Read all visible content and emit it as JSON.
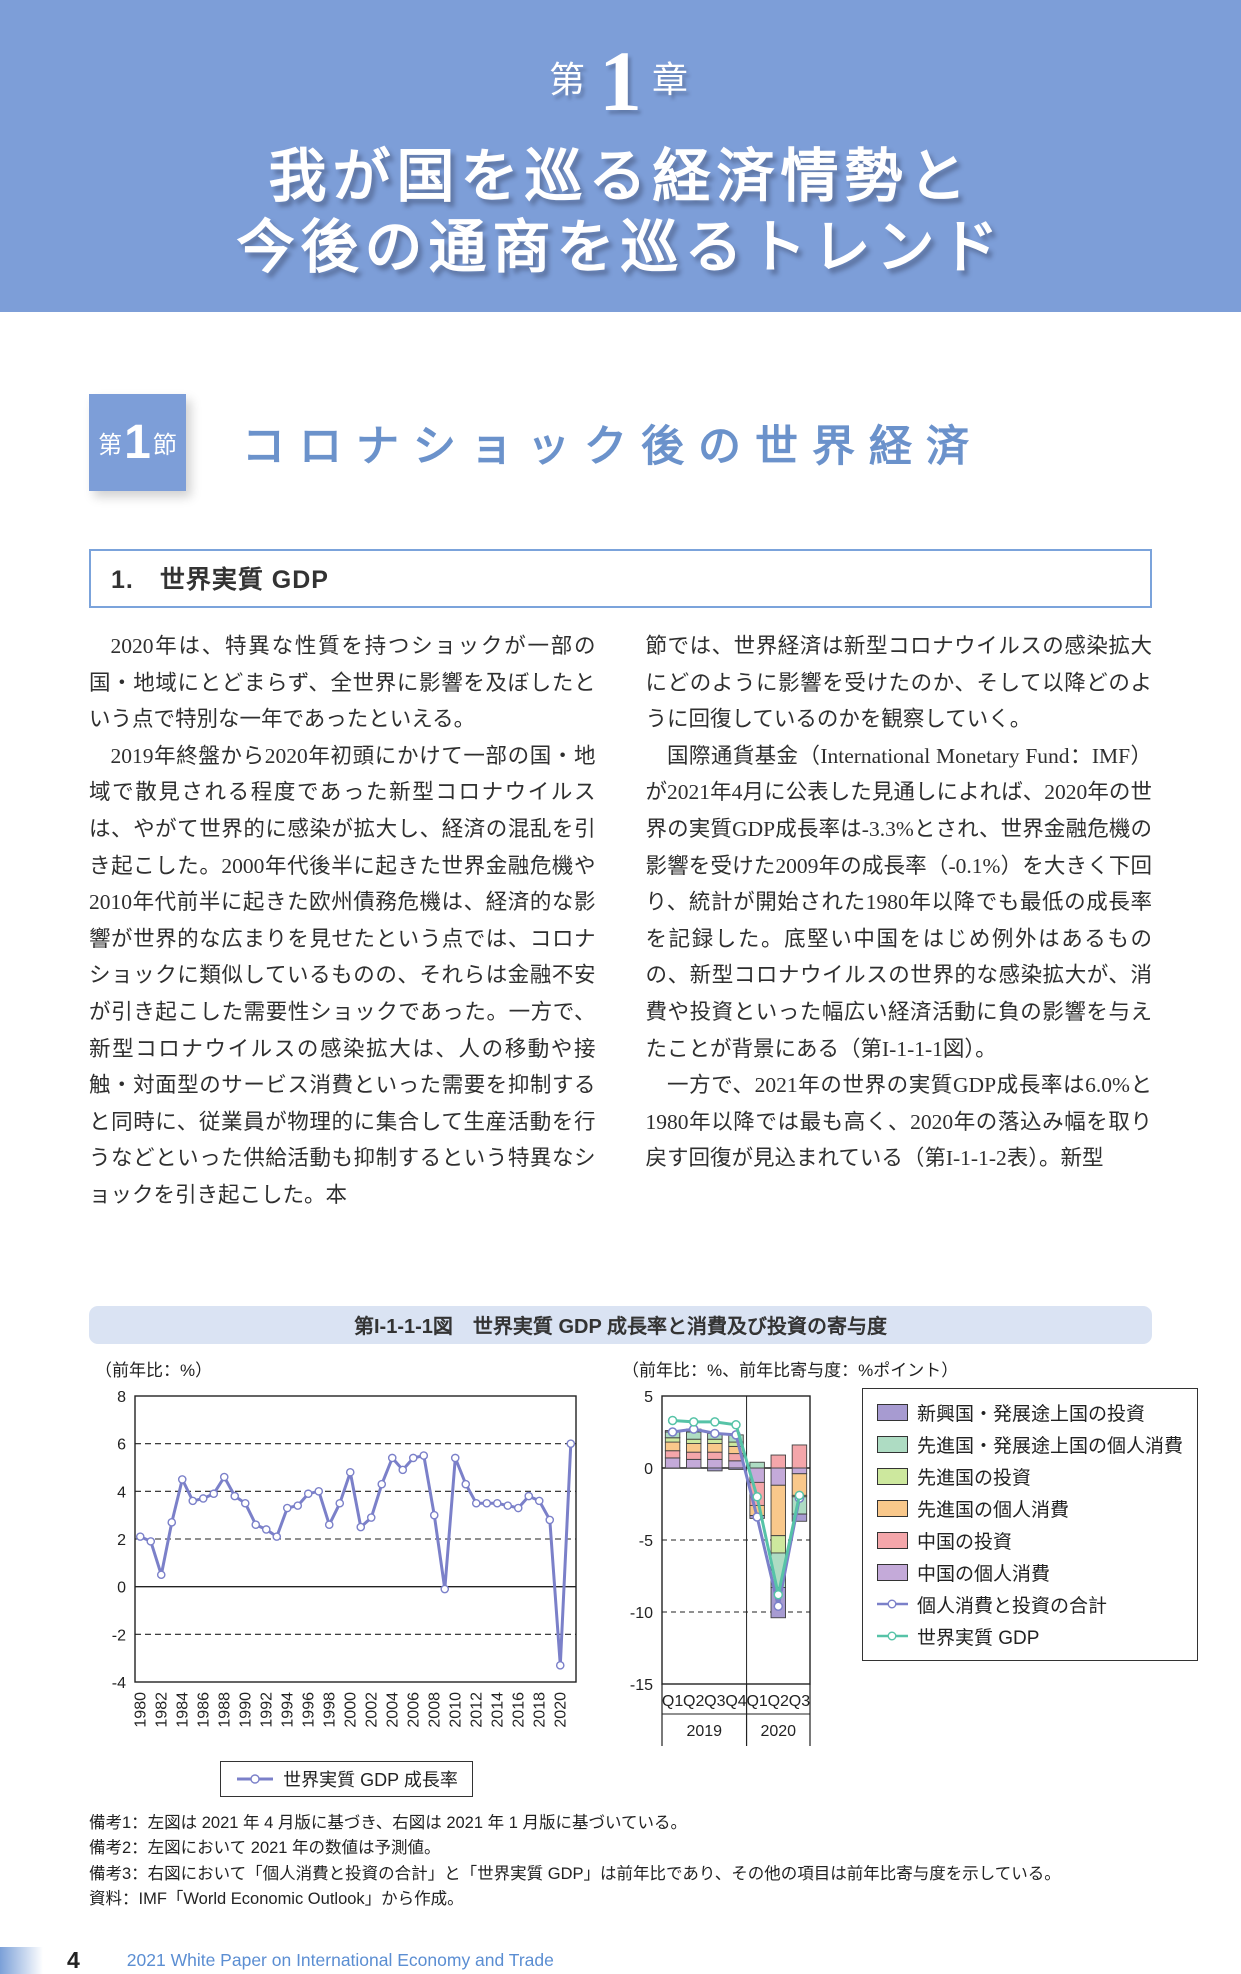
{
  "page": {
    "header": {
      "chapter_prefix": "第",
      "chapter_number": "1",
      "chapter_suffix": "章",
      "title_line1": "我が国を巡る経済情勢と",
      "title_line2": "今後の通商を巡るトレンド"
    },
    "section": {
      "badge_prefix": "第",
      "badge_number": "1",
      "badge_suffix": "節",
      "title": "コロナショック後の世界経済"
    },
    "heading": "1.　世界実質 GDP",
    "columns": {
      "left": [
        "2020年は、特異な性質を持つショックが一部の国・地域にとどまらず、全世界に影響を及ぼしたという点で特別な一年であったといえる。",
        "2019年終盤から2020年初頭にかけて一部の国・地域で散見される程度であった新型コロナウイルスは、やがて世界的に感染が拡大し、経済の混乱を引き起こした。2000年代後半に起きた世界金融危機や2010年代前半に起きた欧州債務危機は、経済的な影響が世界的な広まりを見せたという点では、コロナショックに類似しているものの、それらは金融不安が引き起こした需要性ショックであった。一方で、新型コロナウイルスの感染拡大は、人の移動や接触・対面型のサービス消費といった需要を抑制すると同時に、従業員が物理的に集合して生産活動を行うなどといった供給活動も抑制するという特異なショックを引き起こした。本"
      ],
      "right": [
        "節では、世界経済は新型コロナウイルスの感染拡大にどのように影響を受けたのか、そして以降どのように回復しているのかを観察していく。",
        "国際通貨基金（International Monetary Fund：IMF）が2021年4月に公表した見通しによれば、2020年の世界の実質GDP成長率は-3.3%とされ、世界金融危機の影響を受けた2009年の成長率（-0.1%）を大きく下回り、統計が開始された1980年以降でも最低の成長率を記録した。底堅い中国をはじめ例外はあるものの、新型コロナウイルスの世界的な感染拡大が、消費や投資といった幅広い経済活動に負の影響を与えたことが背景にある（第I-1-1-1図）。",
        "一方で、2021年の世界の実質GDP成長率は6.0%と1980年以降では最も高く、2020年の落込み幅を取り戻す回復が見込まれている（第I-1-1-2表）。新型"
      ]
    },
    "figure": {
      "title": "第I-1-1-1図　世界実質 GDP 成長率と消費及び投資の寄与度",
      "notes": [
        "備考1：左図は 2021 年 4 月版に基づき、右図は 2021 年 1 月版に基づいている。",
        "備考2：左図において 2021 年の数値は予測値。",
        "備考3：右図において「個人消費と投資の合計」と「世界実質 GDP」は前年比であり、その他の項目は前年比寄与度を示している。",
        "資料：IMF「World Economic Outlook」から作成。"
      ]
    },
    "footer": {
      "page_number": "4",
      "text": "2021 White Paper on International Economy and Trade"
    }
  },
  "chart_data": [
    {
      "type": "line",
      "title": "世界実質GDP成長率",
      "unit_label": "（前年比：%）",
      "legend_label": "世界実質 GDP 成長率",
      "legend_position": "bottom",
      "grid": "horizontal dashed",
      "x": [
        1980,
        1981,
        1982,
        1983,
        1984,
        1985,
        1986,
        1987,
        1988,
        1989,
        1990,
        1991,
        1992,
        1993,
        1994,
        1995,
        1996,
        1997,
        1998,
        1999,
        2000,
        2001,
        2002,
        2003,
        2004,
        2005,
        2006,
        2007,
        2008,
        2009,
        2010,
        2011,
        2012,
        2013,
        2014,
        2015,
        2016,
        2017,
        2018,
        2019,
        2020,
        2021
      ],
      "values": [
        2.1,
        1.9,
        0.5,
        2.7,
        4.5,
        3.6,
        3.7,
        3.9,
        4.6,
        3.8,
        3.5,
        2.6,
        2.4,
        2.1,
        3.3,
        3.4,
        3.9,
        4.0,
        2.6,
        3.5,
        4.8,
        2.5,
        2.9,
        4.3,
        5.4,
        4.9,
        5.4,
        5.5,
        3.0,
        -0.1,
        5.4,
        4.3,
        3.5,
        3.5,
        3.5,
        3.4,
        3.3,
        3.8,
        3.6,
        2.8,
        -3.3,
        6.0
      ],
      "ylim": [
        -4,
        8
      ],
      "yticks": [
        8,
        6,
        4,
        2,
        0,
        -2,
        -4
      ],
      "line_color": "#7b80c9"
    },
    {
      "type": "stacked-bar+line",
      "unit_label": "（前年比：%、前年比寄与度：%ポイント）",
      "categories": [
        "Q1",
        "Q2",
        "Q3",
        "Q4",
        "Q1",
        "Q2",
        "Q3"
      ],
      "groups": [
        {
          "label": "2019",
          "span": 4
        },
        {
          "label": "2020",
          "span": 3
        }
      ],
      "ylim": [
        -15,
        5
      ],
      "yticks": [
        5,
        0,
        -5,
        -10,
        -15
      ],
      "legend_position": "right",
      "series": [
        {
          "name": "新興国・発展途上国の投資",
          "color": "#a79bd1",
          "values": [
            0.1,
            0.2,
            -0.2,
            -0.1,
            -0.2,
            -2.1,
            -0.5
          ]
        },
        {
          "name": "先進国・発展途上国の個人消費",
          "color": "#aedcc3",
          "values": [
            0.4,
            0.5,
            0.4,
            0.5,
            0.4,
            -2.4,
            -1.2
          ]
        },
        {
          "name": "先進国の投資",
          "color": "#cde89e",
          "values": [
            0.3,
            0.3,
            0.3,
            0.3,
            0.0,
            -1.2,
            -0.1
          ]
        },
        {
          "name": "先進国の個人消費",
          "color": "#f9c88b",
          "values": [
            0.6,
            0.6,
            0.6,
            0.5,
            -0.7,
            -3.5,
            -1.5
          ]
        },
        {
          "name": "中国の投資",
          "color": "#f4a6aa",
          "values": [
            0.5,
            0.5,
            0.5,
            0.5,
            -1.6,
            0.9,
            1.6
          ]
        },
        {
          "name": "中国の個人消費",
          "color": "#c4aad9",
          "values": [
            0.7,
            0.6,
            0.6,
            0.5,
            -1.0,
            -1.2,
            -0.4
          ]
        }
      ],
      "lines": [
        {
          "name": "個人消費と投資の合計",
          "color": "#7b80c9",
          "values": [
            2.5,
            2.7,
            2.4,
            2.3,
            -3.4,
            -9.6,
            -2.1
          ]
        },
        {
          "name": "世界実質 GDP",
          "color": "#56c3a7",
          "values": [
            3.3,
            3.2,
            3.2,
            3.0,
            -2.0,
            -8.8,
            -1.9
          ]
        }
      ]
    }
  ]
}
